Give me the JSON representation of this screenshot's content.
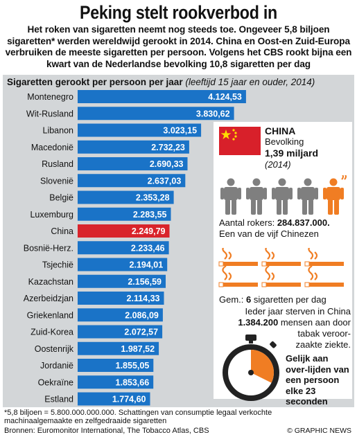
{
  "header": {
    "title": "Peking stelt rookverbod in",
    "intro": "Het roken van sigaretten neemt nog steeds toe. Ongeveer 5,8 biljoen sigaretten* werden wereldwijd gerookt in 2014. China en Oost-en Zuid-Europa verbruiken de meeste sigaretten per persoon. Volgens het CBS rookt bijna een kwart van de Nederlandse bevolking 10,8 sigaretten per dag"
  },
  "chart_title": "Sigaretten gerookt per persoon per jaar",
  "chart_subtitle": "(leeftijd 15 jaar en ouder, 2014)",
  "chart_data": {
    "type": "bar",
    "orientation": "horizontal",
    "categories": [
      "Montenegro",
      "Wit-Rusland",
      "Libanon",
      "Macedonië",
      "Rusland",
      "Slovenië",
      "België",
      "Luxemburg",
      "China",
      "Bosnië-Herz.",
      "Tsjechië",
      "Kazachstan",
      "Azerbeidzjan",
      "Griekenland",
      "Zuid-Korea",
      "Oostenrijk",
      "Jordanië",
      "Oekraïne",
      "Estland"
    ],
    "values": [
      4124.53,
      3830.62,
      3023.15,
      2732.23,
      2690.33,
      2637.03,
      2353.28,
      2283.55,
      2249.79,
      2233.46,
      2194.01,
      2156.59,
      2114.33,
      2086.09,
      2072.57,
      1987.52,
      1855.05,
      1853.66,
      1774.6
    ],
    "value_labels": [
      "4.124,53",
      "3.830,62",
      "3.023,15",
      "2.732,23",
      "2.690,33",
      "2.637,03",
      "2.353,28",
      "2.283,55",
      "2.249,79",
      "2.233,46",
      "2.194,01",
      "2.156,59",
      "2.114,33",
      "2.086,09",
      "2.072,57",
      "1.987,52",
      "1.855,05",
      "1.853,66",
      "1.774,60"
    ],
    "highlight": "China",
    "colors": {
      "bar": "#1a73c7",
      "highlight": "#d9242b"
    }
  },
  "china_box": {
    "title": "CHINA",
    "population_label": "Bevolking",
    "population_value": "1,39 miljard",
    "population_year": "(2014)",
    "smokers_label": "Aantal rokers:",
    "smokers_value": "284.837.000.",
    "smokers_note": "Een van de vijf Chinezen",
    "avg_prefix": "Gem.:",
    "avg_value": "6",
    "avg_suffix": "sigaretten per dag",
    "deaths_prefix": "Ieder jaar sterven in China",
    "deaths_value": "1.384.200",
    "deaths_suffix": "mensen aan door",
    "deaths_line3": "tabak veroor-",
    "deaths_line4": "zaakte ziekte.",
    "compare": "Gelijk aan over-lijden van een persoon elke 23 seconden",
    "colors": {
      "person": "#7f7f7f",
      "smoker": "#f07d23"
    }
  },
  "footer": {
    "footnote": "*5,8 biljoen = 5.800.000.000.000. Schattingen van consumptie legaal verkochte machinaalgemaakte en zelfgedraaide sigaretten",
    "sources": "Bronnen: Euromonitor International, The Tobacco Atlas, CBS",
    "credit": "© GRAPHIC NEWS"
  }
}
